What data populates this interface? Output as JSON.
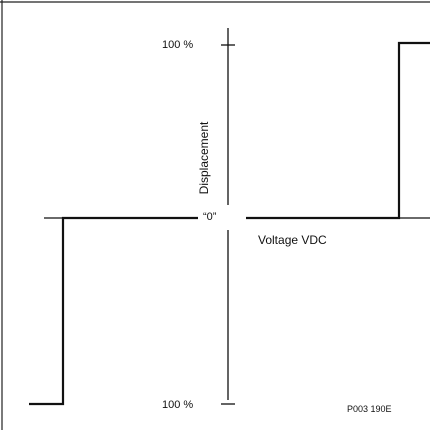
{
  "labels": {
    "top_percent": "100 %",
    "bottom_percent": "100 %",
    "zero_marker": "“0”",
    "x_axis": "Voltage VDC",
    "y_axis": "Displacement",
    "figure_code": "P003 190E"
  }
}
